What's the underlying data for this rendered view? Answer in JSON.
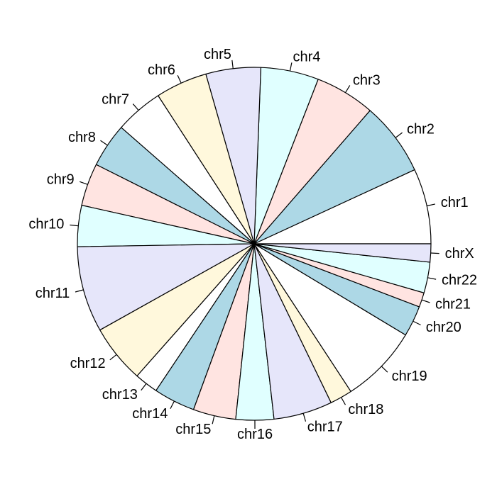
{
  "chart_data": {
    "type": "pie",
    "title": "",
    "direction": "counterclockwise",
    "start_angle_deg": 0,
    "palette": [
      "#FFFFFF",
      "#ADD8E6",
      "#FFE4E1",
      "#E0FFFF",
      "#E6E6FA",
      "#FFF8DC"
    ],
    "slices": [
      {
        "label": "chr1",
        "value": 249
      },
      {
        "label": "chr2",
        "value": 243
      },
      {
        "label": "chr3",
        "value": 198
      },
      {
        "label": "chr4",
        "value": 191
      },
      {
        "label": "chr5",
        "value": 181
      },
      {
        "label": "chr6",
        "value": 171
      },
      {
        "label": "chr7",
        "value": 159
      },
      {
        "label": "chr8",
        "value": 146
      },
      {
        "label": "chr9",
        "value": 141
      },
      {
        "label": "chr10",
        "value": 136
      },
      {
        "label": "chr11",
        "value": 284
      },
      {
        "label": "chr12",
        "value": 193
      },
      {
        "label": "chr13",
        "value": 78
      },
      {
        "label": "chr14",
        "value": 137
      },
      {
        "label": "chr15",
        "value": 141
      },
      {
        "label": "chr16",
        "value": 125
      },
      {
        "label": "chr17",
        "value": 194
      },
      {
        "label": "chr18",
        "value": 74
      },
      {
        "label": "chr19",
        "value": 258
      },
      {
        "label": "chr20",
        "value": 102
      },
      {
        "label": "chr21",
        "value": 48
      },
      {
        "label": "chr22",
        "value": 102
      },
      {
        "label": "chrX",
        "value": 60
      }
    ]
  }
}
